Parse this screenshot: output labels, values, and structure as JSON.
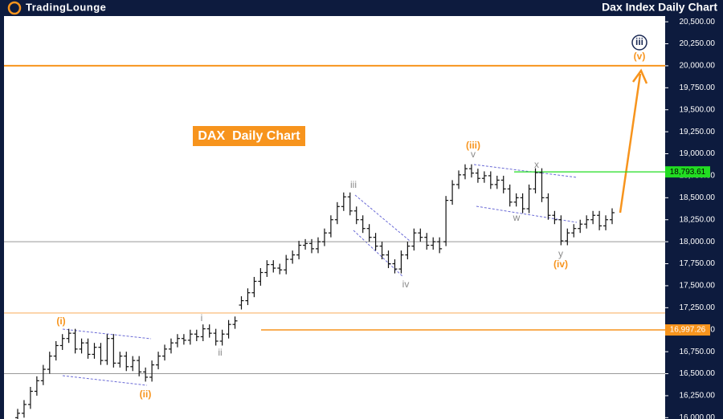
{
  "logo": "TradingLounge",
  "chart_data": {
    "type": "ohlc",
    "title": "Dax Index Daily Chart",
    "box_label": "DAX  Daily Chart",
    "bar_color": "#111111",
    "ylim": [
      15985,
      20565
    ],
    "yticks": [
      {
        "value": 16000,
        "label": "16,000.00"
      },
      {
        "value": 16250,
        "label": "16,250.00"
      },
      {
        "value": 16500,
        "label": "16,500.00"
      },
      {
        "value": 16750,
        "label": "16,750.00"
      },
      {
        "value": 17000,
        "label": "17,000.00"
      },
      {
        "value": 17250,
        "label": "17,250.00"
      },
      {
        "value": 17500,
        "label": "17,500.00"
      },
      {
        "value": 17750,
        "label": "17,750.00"
      },
      {
        "value": 18000,
        "label": "18,000.00"
      },
      {
        "value": 18250,
        "label": "18,250.00"
      },
      {
        "value": 18500,
        "label": "18,500.00"
      },
      {
        "value": 18750,
        "label": "18,750.00"
      },
      {
        "value": 19000,
        "label": "19,000.00"
      },
      {
        "value": 19250,
        "label": "19,250.00"
      },
      {
        "value": 19500,
        "label": "19,500.00"
      },
      {
        "value": 19750,
        "label": "19,750.00"
      },
      {
        "value": 20000,
        "label": "20,000.00"
      },
      {
        "value": 20250,
        "label": "20,250.00"
      },
      {
        "value": 20500,
        "label": "20,500.00"
      }
    ],
    "levels": [
      {
        "value": 20000,
        "color": "#f7941d"
      },
      {
        "value": 18793.61,
        "label": "18,793.61",
        "color": "#22dd22"
      },
      {
        "value": 18000,
        "color": "#999999"
      },
      {
        "value": 17190,
        "color": "#f9b56b"
      },
      {
        "value": 16997.26,
        "label": "16,997.26",
        "color": "#f7941d"
      },
      {
        "value": 16500,
        "color": "#999999"
      }
    ],
    "wave_labels": [
      {
        "text": "(i)",
        "color": "#f7941d"
      },
      {
        "text": "(ii)",
        "color": "#f7941d"
      },
      {
        "text": "i",
        "color": "#8a8a8a"
      },
      {
        "text": "ii",
        "color": "#8a8a8a"
      },
      {
        "text": "iii",
        "color": "#8a8a8a"
      },
      {
        "text": "iv",
        "color": "#8a8a8a"
      },
      {
        "text": "v",
        "color": "#8a8a8a"
      },
      {
        "text": "(iii)",
        "color": "#f7941d"
      },
      {
        "text": "w",
        "color": "#8a8a8a"
      },
      {
        "text": "x",
        "color": "#8a8a8a"
      },
      {
        "text": "y",
        "color": "#8a8a8a"
      },
      {
        "text": "(iv)",
        "color": "#f7941d"
      },
      {
        "text": "(v)",
        "color": "#f7941d"
      },
      {
        "text": "iii",
        "color": "#1b2a55"
      }
    ],
    "ohlc": [
      [
        16000,
        16100,
        15950,
        16050
      ],
      [
        16050,
        16200,
        16000,
        16150
      ],
      [
        16150,
        16350,
        16100,
        16300
      ],
      [
        16300,
        16470,
        16250,
        16420
      ],
      [
        16420,
        16600,
        16370,
        16550
      ],
      [
        16550,
        16750,
        16500,
        16700
      ],
      [
        16700,
        16870,
        16650,
        16820
      ],
      [
        16820,
        16950,
        16770,
        16900
      ],
      [
        16900,
        17010,
        16850,
        16960
      ],
      [
        16960,
        17010,
        16730,
        16780
      ],
      [
        16780,
        16900,
        16730,
        16850
      ],
      [
        16850,
        16900,
        16670,
        16720
      ],
      [
        16720,
        16850,
        16670,
        16800
      ],
      [
        16800,
        16850,
        16600,
        16650
      ],
      [
        16650,
        16950,
        16600,
        16900
      ],
      [
        16900,
        16950,
        16570,
        16620
      ],
      [
        16620,
        16750,
        16570,
        16700
      ],
      [
        16700,
        16750,
        16530,
        16580
      ],
      [
        16580,
        16700,
        16530,
        16650
      ],
      [
        16650,
        16700,
        16470,
        16520
      ],
      [
        16520,
        16570,
        16410,
        16460
      ],
      [
        16460,
        16650,
        16410,
        16600
      ],
      [
        16600,
        16750,
        16550,
        16700
      ],
      [
        16700,
        16830,
        16650,
        16780
      ],
      [
        16780,
        16900,
        16730,
        16850
      ],
      [
        16850,
        16950,
        16800,
        16900
      ],
      [
        16900,
        16950,
        16830,
        16880
      ],
      [
        16880,
        17000,
        16830,
        16950
      ],
      [
        16950,
        17000,
        16870,
        16920
      ],
      [
        16920,
        17060,
        16870,
        17010
      ],
      [
        17010,
        17060,
        16910,
        16960
      ],
      [
        16960,
        17010,
        16820,
        16870
      ],
      [
        16870,
        17000,
        16820,
        16950
      ],
      [
        16950,
        17110,
        16900,
        17060
      ],
      [
        17060,
        17150,
        17010,
        17100
      ],
      [
        17280,
        17380,
        17230,
        17330
      ],
      [
        17330,
        17470,
        17280,
        17420
      ],
      [
        17420,
        17600,
        17370,
        17550
      ],
      [
        17550,
        17700,
        17500,
        17650
      ],
      [
        17650,
        17790,
        17600,
        17740
      ],
      [
        17740,
        17790,
        17650,
        17700
      ],
      [
        17700,
        17750,
        17630,
        17680
      ],
      [
        17680,
        17850,
        17630,
        17800
      ],
      [
        17800,
        17900,
        17750,
        17850
      ],
      [
        17850,
        18010,
        17800,
        17960
      ],
      [
        17960,
        18030,
        17910,
        17980
      ],
      [
        17980,
        18030,
        17870,
        17920
      ],
      [
        17920,
        18050,
        17870,
        18000
      ],
      [
        18000,
        18150,
        17950,
        18100
      ],
      [
        18100,
        18300,
        18050,
        18250
      ],
      [
        18250,
        18450,
        18200,
        18400
      ],
      [
        18400,
        18560,
        18350,
        18510
      ],
      [
        18510,
        18560,
        18300,
        18350
      ],
      [
        18350,
        18400,
        18200,
        18250
      ],
      [
        18250,
        18300,
        18100,
        18150
      ],
      [
        18150,
        18200,
        18000,
        18050
      ],
      [
        18050,
        18100,
        17900,
        17950
      ],
      [
        17950,
        18000,
        17800,
        17850
      ],
      [
        17850,
        17900,
        17700,
        17750
      ],
      [
        17750,
        17800,
        17640,
        17690
      ],
      [
        17690,
        17900,
        17640,
        17850
      ],
      [
        17850,
        18000,
        17800,
        17950
      ],
      [
        17950,
        18150,
        17900,
        18100
      ],
      [
        18100,
        18150,
        18000,
        18050
      ],
      [
        18050,
        18100,
        17910,
        17960
      ],
      [
        17960,
        18050,
        17910,
        18000
      ],
      [
        18000,
        18050,
        17870,
        17920
      ],
      [
        18000,
        18520,
        17950,
        18470
      ],
      [
        18470,
        18700,
        18420,
        18650
      ],
      [
        18650,
        18810,
        18600,
        18760
      ],
      [
        18760,
        18880,
        18710,
        18830
      ],
      [
        18830,
        18880,
        18730,
        18780
      ],
      [
        18780,
        18830,
        18670,
        18720
      ],
      [
        18720,
        18800,
        18670,
        18750
      ],
      [
        18750,
        18800,
        18600,
        18650
      ],
      [
        18650,
        18750,
        18600,
        18700
      ],
      [
        18700,
        18750,
        18550,
        18600
      ],
      [
        18600,
        18650,
        18400,
        18450
      ],
      [
        18450,
        18550,
        18400,
        18500
      ],
      [
        18500,
        18550,
        18325,
        18375
      ],
      [
        18375,
        18650,
        18325,
        18600
      ],
      [
        18600,
        18835,
        18550,
        18785
      ],
      [
        18785,
        18835,
        18450,
        18500
      ],
      [
        18500,
        18550,
        18250,
        18300
      ],
      [
        18300,
        18350,
        18200,
        18250
      ],
      [
        18250,
        18300,
        17960,
        18010
      ],
      [
        18010,
        18150,
        17960,
        18100
      ],
      [
        18100,
        18200,
        18050,
        18150
      ],
      [
        18150,
        18250,
        18100,
        18200
      ],
      [
        18200,
        18300,
        18150,
        18250
      ],
      [
        18250,
        18350,
        18200,
        18300
      ],
      [
        18300,
        18350,
        18130,
        18180
      ],
      [
        18180,
        18300,
        18130,
        18250
      ],
      [
        18250,
        18380,
        18200,
        18330
      ]
    ]
  }
}
